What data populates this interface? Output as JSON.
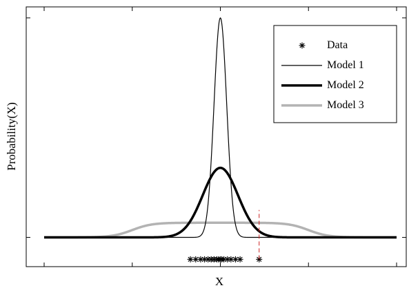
{
  "chart_data": {
    "type": "line",
    "title": "",
    "xlabel": "X",
    "ylabel": "Probability(X)",
    "xlim": [
      -5,
      5
    ],
    "ylim": [
      -0.8,
      6.3
    ],
    "xticks_visible": true,
    "yticks_visible": true,
    "tick_labels_visible": false,
    "grid": false,
    "legend": {
      "placement": "top-right",
      "entries": [
        "Data",
        "Model 1",
        "Model 2",
        "Model 3"
      ]
    },
    "series": [
      {
        "name": "Model 1",
        "kind": "gaussian",
        "mean": 0,
        "std": 0.18,
        "peak": 6.0,
        "color": "#000000",
        "line_width": "thin"
      },
      {
        "name": "Model 2",
        "kind": "gaussian",
        "mean": 0,
        "std": 0.5,
        "peak": 1.9,
        "color": "#000000",
        "line_width": "thick"
      },
      {
        "name": "Model 3",
        "kind": "smoothed-uniform",
        "low": -2.5,
        "high": 2.5,
        "edge_softness": 0.28,
        "peak": 0.4,
        "color": "#b3b3b3",
        "line_width": "thick"
      }
    ],
    "data_points": {
      "name": "Data",
      "marker": "asterisk",
      "y": -0.6,
      "x": [
        -0.85,
        -0.7,
        -0.56,
        -0.45,
        -0.35,
        -0.26,
        -0.18,
        -0.1,
        -0.05,
        0.0,
        0.04,
        0.1,
        0.2,
        0.3,
        0.43,
        0.56,
        1.1
      ]
    },
    "reference_line": {
      "x": 1.1,
      "style": "dashed",
      "color": "#cc2222",
      "y_range": [
        -0.6,
        0.75
      ]
    }
  }
}
